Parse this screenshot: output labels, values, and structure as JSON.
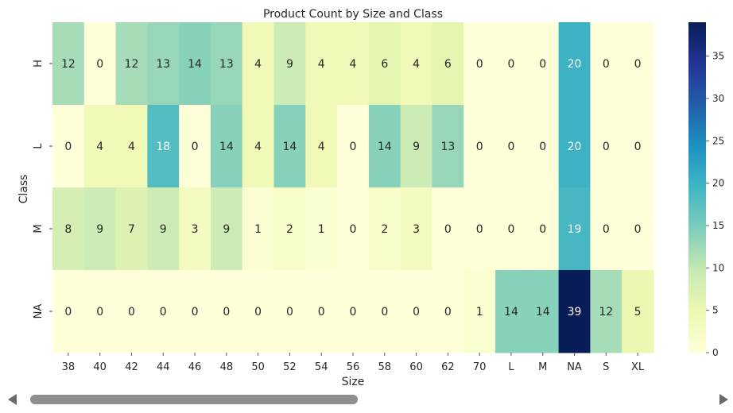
{
  "chart_data": {
    "type": "heatmap",
    "title": "Product Count by Size and Class",
    "xlabel": "Size",
    "ylabel": "Class",
    "x_categories": [
      "38",
      "40",
      "42",
      "44",
      "46",
      "48",
      "50",
      "52",
      "54",
      "56",
      "58",
      "60",
      "62",
      "70",
      "L",
      "M",
      "NA",
      "S",
      "XL"
    ],
    "y_categories": [
      "H",
      "L",
      "M",
      "NA"
    ],
    "values": [
      [
        12,
        0,
        12,
        13,
        14,
        13,
        4,
        9,
        4,
        4,
        6,
        4,
        6,
        0,
        0,
        0,
        20,
        0,
        0
      ],
      [
        0,
        4,
        4,
        18,
        0,
        14,
        4,
        14,
        4,
        0,
        14,
        9,
        13,
        0,
        0,
        0,
        20,
        0,
        0
      ],
      [
        8,
        9,
        7,
        9,
        3,
        9,
        1,
        2,
        1,
        0,
        2,
        3,
        0,
        0,
        0,
        0,
        19,
        0,
        0
      ],
      [
        0,
        0,
        0,
        0,
        0,
        0,
        0,
        0,
        0,
        0,
        0,
        0,
        0,
        1,
        14,
        14,
        39,
        12,
        5
      ]
    ],
    "colorbar": {
      "min": 0,
      "max": 39,
      "ticks": [
        0,
        5,
        10,
        15,
        20,
        25,
        30,
        35
      ],
      "colormap": "YlGnBu"
    },
    "grid": false
  },
  "scrollbar": {
    "label": "horizontal-scrollbar"
  }
}
